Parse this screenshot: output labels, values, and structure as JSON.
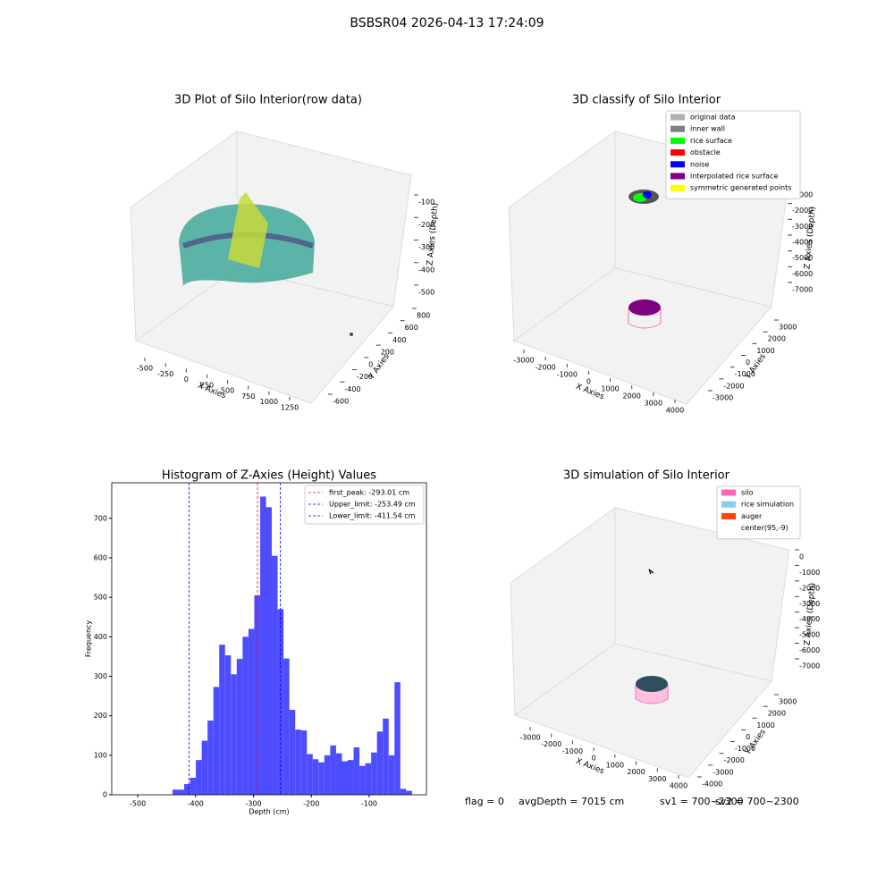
{
  "title": "BSBSR04 2026-04-13 17:24:09",
  "chart_data": [
    {
      "type": "scatter3d",
      "title": "3D Plot of Silo Interior(row data)",
      "xlabel": "X Axies",
      "ylabel": "Y Axies",
      "zlabel": "Z Axies (Depth)",
      "xticks": [
        -500,
        -250,
        0,
        250,
        500,
        750,
        1000,
        1250
      ],
      "yticks": [
        -600,
        -400,
        -200,
        0,
        200,
        400,
        600,
        800
      ],
      "zticks": [
        -500,
        -400,
        -300,
        -200,
        -100
      ],
      "grid": true
    },
    {
      "type": "scatter3d",
      "title": "3D classify of Silo Interior",
      "xlabel": "X Axies",
      "ylabel": "Y Axies",
      "zlabel": "Z Axies (Depth)",
      "xticks": [
        -3000,
        -2000,
        -1000,
        0,
        1000,
        2000,
        3000,
        4000
      ],
      "yticks": [
        -3000,
        -2000,
        -1000,
        0,
        1000,
        2000,
        3000
      ],
      "zticks": [
        -7000,
        -6000,
        -5000,
        -4000,
        -3000,
        -2000,
        -1000
      ],
      "grid": true,
      "legend": [
        {
          "name": "original data",
          "color": "#b0b0b0"
        },
        {
          "name": "inner wall",
          "color": "#808080"
        },
        {
          "name": "rice surface",
          "color": "#00ff00"
        },
        {
          "name": "obstacle",
          "color": "#ff0000"
        },
        {
          "name": "noise",
          "color": "#0000ff"
        },
        {
          "name": "interpolated rice surface",
          "color": "#800080"
        },
        {
          "name": "symmetric generated points",
          "color": "#ffff00"
        }
      ]
    },
    {
      "type": "histogram",
      "title": "Histogram of Z-Axies (Height) Values",
      "xlabel": "Depth (cm)",
      "ylabel": "Frequency",
      "color": "#4d4dff",
      "bins": [
        -440,
        -429.9,
        -419.8,
        -409.7,
        -399.6,
        -389.5,
        -379.4,
        -369.3,
        -359.2,
        -349.1,
        -339,
        -328.9,
        -318.8,
        -308.7,
        -298.6,
        -288.5,
        -278.4,
        -268.3,
        -258.2,
        -248.1,
        -238,
        -227.9,
        -217.8,
        -207.7,
        -197.6,
        -187.5,
        -177.4,
        -167.3,
        -157.2,
        -147.1,
        -137,
        -126.9,
        -116.8,
        -106.7,
        -96.6,
        -86.5,
        -76.4,
        -66.3,
        -56.2,
        -46.1,
        -36,
        -25.9
      ],
      "values": [
        13,
        13,
        27,
        43,
        88,
        137,
        188,
        273,
        380,
        353,
        305,
        344,
        400,
        420,
        505,
        755,
        728,
        605,
        470,
        345,
        215,
        165,
        163,
        103,
        90,
        82,
        100,
        125,
        105,
        85,
        88,
        120,
        73,
        80,
        107,
        160,
        193,
        100,
        285,
        15,
        10
      ],
      "xlim": [
        -545,
        -1
      ],
      "ylim": [
        0,
        790
      ],
      "xticks": [
        -500,
        -400,
        -300,
        -200,
        -100
      ],
      "yticks": [
        0,
        100,
        200,
        300,
        400,
        500,
        600,
        700
      ],
      "lines": [
        {
          "label": "first_peak: -293.01 cm",
          "value": -293.01,
          "color": "#ff0000"
        },
        {
          "label": "Upper_limit: -253.49 cm",
          "value": -253.49,
          "color": "#0000ff"
        },
        {
          "label": "Lower_limit: -411.54 cm",
          "value": -411.54,
          "color": "#0000ff"
        }
      ]
    },
    {
      "type": "scatter3d",
      "title": "3D simulation of Silo Interior",
      "xlabel": "X Axies",
      "ylabel": "Y Axies",
      "zlabel": "Z Axies (Depth)",
      "xticks": [
        -3000,
        -2000,
        -1000,
        0,
        1000,
        2000,
        3000,
        4000
      ],
      "yticks": [
        -4000,
        -3000,
        -2000,
        -1000,
        0,
        1000,
        2000,
        3000
      ],
      "zticks": [
        -7000,
        -6000,
        -5000,
        -4000,
        -3000,
        -2000,
        -1000,
        0
      ],
      "grid": true,
      "legend": [
        {
          "name": "silo",
          "color": "#ff69b4"
        },
        {
          "name": "rice simulation",
          "color": "#87ceeb"
        },
        {
          "name": "auger",
          "color": "#ff4500"
        },
        {
          "name": "center(95,-9)",
          "color": "#ffffff"
        }
      ]
    }
  ],
  "status": [
    "flag = 0",
    "avgDepth = 7015 cm",
    "sv1 = 700~2300",
    "sv2 = 700~2300"
  ]
}
